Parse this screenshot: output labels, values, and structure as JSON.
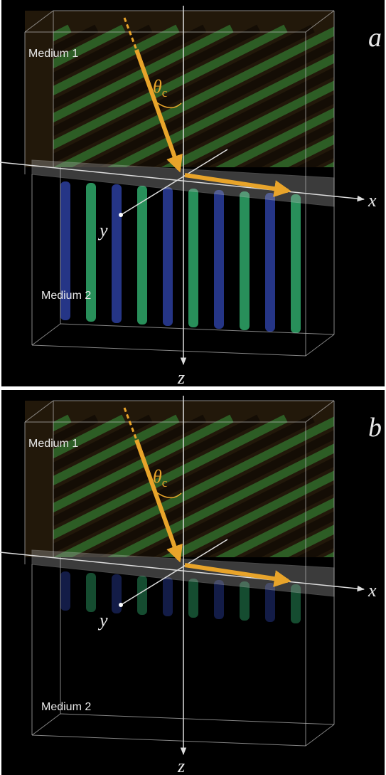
{
  "panels": [
    {
      "label": "a",
      "medium_1": "Medium 1",
      "medium_2": "Medium 2",
      "angle_symbol": "θ",
      "angle_subscript": "c",
      "x_axis": "x",
      "y_axis": "y",
      "z_axis": "z"
    },
    {
      "label": "b",
      "medium_1": "Medium 1",
      "medium_2": "Medium 2",
      "angle_symbol": "θ",
      "angle_subscript": "c",
      "x_axis": "x",
      "y_axis": "y",
      "z_axis": "z"
    }
  ]
}
